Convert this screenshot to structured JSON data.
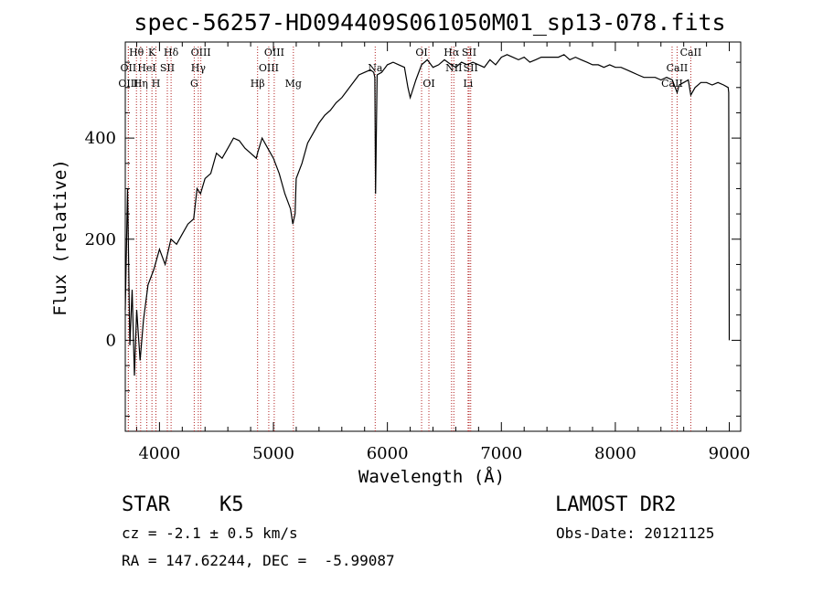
{
  "chart_data": {
    "type": "line",
    "title": "spec-56257-HD094409S061050M01_sp13-078.fits",
    "xlabel": "Wavelength (Å)",
    "ylabel": "Flux (relative)",
    "xlim": [
      3700,
      9100
    ],
    "ylim": [
      -180,
      590
    ],
    "x_ticks": [
      4000,
      5000,
      6000,
      7000,
      8000,
      9000
    ],
    "y_ticks": [
      0,
      200,
      400
    ],
    "grid": false,
    "series": [
      {
        "x": [
          3700,
          3720,
          3740,
          3760,
          3780,
          3800,
          3830,
          3860,
          3900,
          3950,
          4000,
          4050,
          4100,
          4150,
          4200,
          4250,
          4300,
          4330,
          4360,
          4400,
          4450,
          4500,
          4550,
          4600,
          4650,
          4700,
          4750,
          4800,
          4850,
          4860,
          4900,
          4950,
          5000,
          5050,
          5100,
          5150,
          5170,
          5190,
          5200,
          5250,
          5300,
          5350,
          5400,
          5450,
          5500,
          5550,
          5600,
          5650,
          5700,
          5750,
          5800,
          5850,
          5880,
          5890,
          5896,
          5910,
          5950,
          6000,
          6050,
          6100,
          6150,
          6180,
          6200,
          6250,
          6300,
          6350,
          6400,
          6450,
          6500,
          6560,
          6600,
          6650,
          6700,
          6750,
          6800,
          6850,
          6900,
          6950,
          7000,
          7050,
          7100,
          7150,
          7200,
          7250,
          7300,
          7350,
          7400,
          7450,
          7500,
          7550,
          7600,
          7650,
          7700,
          7750,
          7800,
          7850,
          7900,
          7950,
          8000,
          8050,
          8100,
          8150,
          8200,
          8250,
          8300,
          8350,
          8400,
          8450,
          8500,
          8542,
          8560,
          8600,
          8640,
          8662,
          8700,
          8750,
          8800,
          8850,
          8900,
          8950,
          8990,
          8995,
          9000
        ],
        "y": [
          60,
          300,
          -10,
          100,
          -70,
          60,
          -40,
          40,
          110,
          140,
          180,
          150,
          200,
          190,
          210,
          230,
          240,
          300,
          290,
          320,
          330,
          370,
          360,
          380,
          400,
          395,
          380,
          370,
          360,
          370,
          400,
          380,
          360,
          330,
          290,
          260,
          230,
          250,
          320,
          350,
          390,
          410,
          430,
          445,
          455,
          470,
          480,
          495,
          510,
          525,
          530,
          535,
          530,
          520,
          290,
          525,
          530,
          545,
          550,
          545,
          540,
          500,
          480,
          515,
          545,
          555,
          540,
          545,
          555,
          545,
          540,
          550,
          545,
          550,
          545,
          540,
          555,
          545,
          560,
          565,
          560,
          555,
          560,
          550,
          555,
          560,
          560,
          560,
          560,
          565,
          555,
          560,
          555,
          550,
          545,
          545,
          540,
          545,
          540,
          540,
          535,
          530,
          525,
          520,
          520,
          520,
          515,
          520,
          515,
          490,
          505,
          510,
          515,
          485,
          500,
          510,
          510,
          505,
          510,
          505,
          500,
          490,
          0
        ]
      }
    ],
    "lines": [
      {
        "name": "Hθ",
        "wl": 3798,
        "pos": "top",
        "row": 0
      },
      {
        "name": "OII",
        "wl": 3727,
        "pos": "top",
        "row": 1
      },
      {
        "name": "OIII",
        "wl": 3727,
        "pos": "top",
        "row": 2
      },
      {
        "name": "K",
        "wl": 3934,
        "pos": "top",
        "row": 0
      },
      {
        "name": "HeI",
        "wl": 3889,
        "pos": "top",
        "row": 1
      },
      {
        "name": "Hη",
        "wl": 3835,
        "pos": "top",
        "row": 2
      },
      {
        "name": "Hδ",
        "wl": 4102,
        "pos": "top",
        "row": 0
      },
      {
        "name": "SII",
        "wl": 4069,
        "pos": "top",
        "row": 1
      },
      {
        "name": "H",
        "wl": 3969,
        "pos": "top",
        "row": 2
      },
      {
        "name": "OIII",
        "wl": 4363,
        "pos": "top",
        "row": 0
      },
      {
        "name": "Hγ",
        "wl": 4341,
        "pos": "top",
        "row": 1
      },
      {
        "name": "G",
        "wl": 4305,
        "pos": "top",
        "row": 2
      },
      {
        "name": "OIII",
        "wl": 5007,
        "pos": "top",
        "row": 0
      },
      {
        "name": "OIII",
        "wl": 4959,
        "pos": "top",
        "row": 1
      },
      {
        "name": "Hβ",
        "wl": 4861,
        "pos": "top",
        "row": 2
      },
      {
        "name": "Mg",
        "wl": 5175,
        "pos": "top",
        "row": 2
      },
      {
        "name": "Na",
        "wl": 5893,
        "pos": "top",
        "row": 1
      },
      {
        "name": "OI",
        "wl": 6300,
        "pos": "top",
        "row": 0
      },
      {
        "name": "OI",
        "wl": 6364,
        "pos": "top",
        "row": 2
      },
      {
        "name": "Hα",
        "wl": 6563,
        "pos": "top",
        "row": 0
      },
      {
        "name": "SII",
        "wl": 6717,
        "pos": "top",
        "row": 0
      },
      {
        "name": "NII",
        "wl": 6583,
        "pos": "top",
        "row": 1
      },
      {
        "name": "SII",
        "wl": 6731,
        "pos": "top",
        "row": 1
      },
      {
        "name": "Li",
        "wl": 6708,
        "pos": "top",
        "row": 2
      },
      {
        "name": "CaII",
        "wl": 8662,
        "pos": "top",
        "row": 0
      },
      {
        "name": "CaII",
        "wl": 8542,
        "pos": "top",
        "row": 1
      },
      {
        "name": "CaII",
        "wl": 8498,
        "pos": "top",
        "row": 2
      }
    ]
  },
  "info": {
    "class": "STAR",
    "subclass": "K5",
    "survey": "LAMOST DR2",
    "cz": "cz = -2.1 ± 0.5 km/s",
    "obs_date": "Obs-Date: 20121125",
    "radec": "RA = 147.62244, DEC =  -5.99087"
  }
}
